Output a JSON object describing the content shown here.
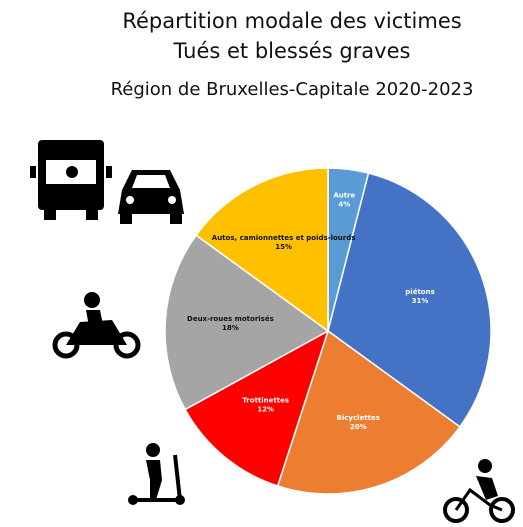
{
  "chart_data": {
    "type": "pie",
    "title": "Répartition modale des victimes",
    "subtitle": "Tués et blessés graves",
    "caption": "Région de Bruxelles-Capitale 2020-2023",
    "categories": [
      "Autre",
      "piétons",
      "Bicyclettes",
      "Trottinettes",
      "Deux-roues motorisés",
      "Autos, camionnettes et poids-lourds"
    ],
    "values": [
      4,
      31,
      20,
      12,
      18,
      15
    ],
    "value_labels": [
      "4%",
      "31%",
      "20%",
      "12%",
      "18%",
      "15%"
    ],
    "colors": [
      "#5b9bd5",
      "#4472c4",
      "#ed7d31",
      "#ff0000",
      "#a5a5a5",
      "#ffc000"
    ]
  }
}
